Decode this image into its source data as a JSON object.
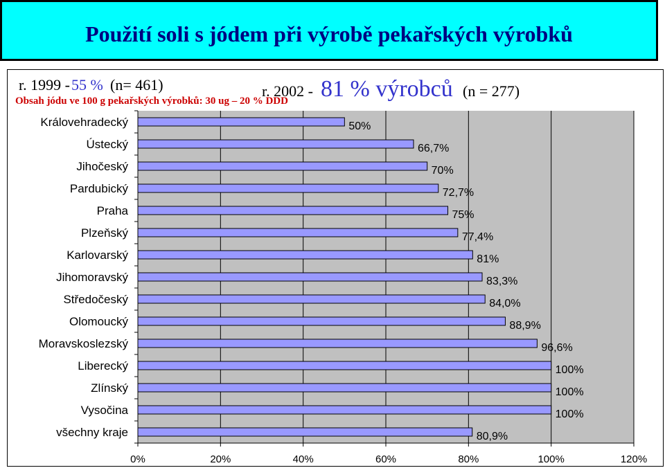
{
  "title": "Použití soli s jódem při výrobě pekařských výrobků",
  "header": {
    "y1999_prefix": "r. 1999 -",
    "y1999_pct": "55 %",
    "y1999_n": "(n= 461)",
    "y2002_prefix": "r. 2002 -",
    "y2002_pct": "81 % výrobců",
    "y2002_n": "(n = 277)",
    "subtitle": "Obsah jódu ve 100 g pekařských výrobků: 30 ug – 20 % DDD"
  },
  "colors": {
    "title_bg": "#00FFFF",
    "title_text": "#000080",
    "bar_fill": "#9999FF",
    "plot_bg": "#C0C0C0",
    "highlight_blue": "#3333CC",
    "subtitle_red": "#CC0000"
  },
  "chart_data": {
    "type": "bar",
    "orientation": "horizontal",
    "categories": [
      "Královehradecký",
      "Ústecký",
      "Jihočeský",
      "Pardubický",
      "Praha",
      "Plzeňský",
      "Karlovarský",
      "Jihomoravský",
      "Středočeský",
      "Olomoucký",
      "Moravskoslezský",
      "Liberecký",
      "Zlínský",
      "Vysočina",
      "všechny kraje"
    ],
    "values": [
      50,
      66.7,
      70,
      72.7,
      75,
      77.4,
      81,
      83.3,
      84.0,
      88.9,
      96.6,
      100,
      100,
      100,
      80.9
    ],
    "data_labels": [
      "50%",
      "66,7%",
      "70%",
      "72,7%",
      "75%",
      "77,4%",
      "81%",
      "83,3%",
      "84,0%",
      "88,9%",
      "96,6%",
      "100%",
      "100%",
      "100%",
      "80,9%"
    ],
    "xlim": [
      0,
      120
    ],
    "xticks": [
      0,
      20,
      40,
      60,
      80,
      100,
      120
    ],
    "xtick_labels": [
      "0%",
      "20%",
      "40%",
      "60%",
      "80%",
      "100%",
      "120%"
    ],
    "grid": true,
    "legend": "none"
  }
}
